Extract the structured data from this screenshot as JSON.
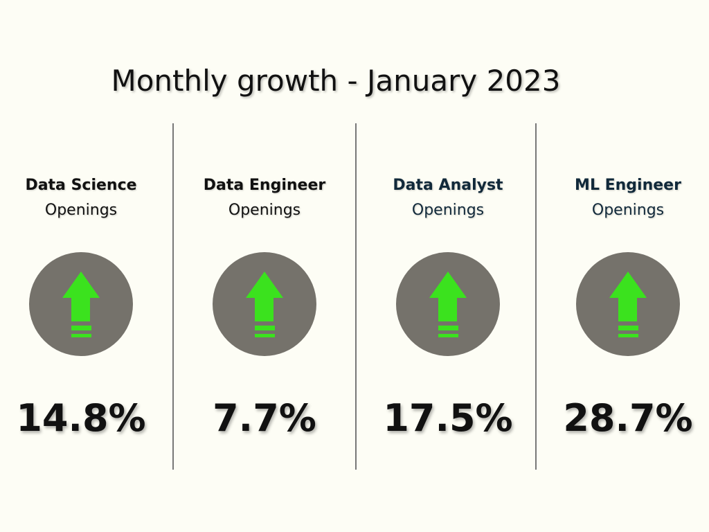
{
  "title": "Monthly growth - January 2023",
  "colors": {
    "circle": "#75726b",
    "arrow": "#3be21e",
    "text_dark": "#111111",
    "text_navy": "#11293a"
  },
  "metrics": [
    {
      "role": "Data Science",
      "sub": "Openings",
      "value": "14.8%",
      "icon": "up-arrow-icon"
    },
    {
      "role": "Data Engineer",
      "sub": "Openings",
      "value": "7.7%",
      "icon": "up-arrow-icon"
    },
    {
      "role": "Data Analyst",
      "sub": "Openings",
      "value": "17.5%",
      "icon": "up-arrow-icon"
    },
    {
      "role": "ML Engineer",
      "sub": "Openings",
      "value": "28.7%",
      "icon": "up-arrow-icon"
    }
  ]
}
